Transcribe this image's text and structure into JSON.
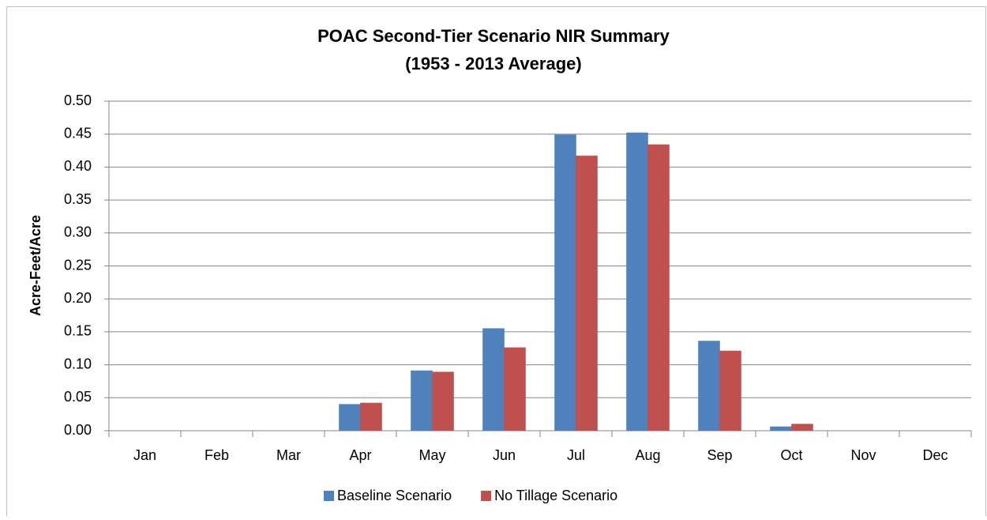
{
  "chart_data": {
    "type": "bar",
    "title": "POAC Second-Tier Scenario NIR Summary",
    "subtitle": "(1953 - 2013 Average)",
    "y_label": "Acre-Feet/Acre",
    "categories": [
      "Jan",
      "Feb",
      "Mar",
      "Apr",
      "May",
      "Jun",
      "Jul",
      "Aug",
      "Sep",
      "Oct",
      "Nov",
      "Dec"
    ],
    "series": [
      {
        "name": "Baseline Scenario",
        "color": "#4f81bd",
        "values": [
          0,
          0,
          0,
          0.04,
          0.091,
          0.155,
          0.449,
          0.452,
          0.136,
          0.006,
          0,
          0
        ]
      },
      {
        "name": "No Tillage Scenario",
        "color": "#c0504d",
        "values": [
          0,
          0,
          0,
          0.042,
          0.089,
          0.126,
          0.417,
          0.434,
          0.121,
          0.01,
          0,
          0
        ]
      }
    ],
    "ylim": [
      0,
      0.5
    ],
    "yticks": [
      {
        "value": 0,
        "label": "0.00"
      },
      {
        "value": 0.05,
        "label": "0.05"
      },
      {
        "value": 0.1,
        "label": "0.10"
      },
      {
        "value": 0.15,
        "label": "0.15"
      },
      {
        "value": 0.2,
        "label": "0.20"
      },
      {
        "value": 0.25,
        "label": "0.25"
      },
      {
        "value": 0.3,
        "label": "0.30"
      },
      {
        "value": 0.35,
        "label": "0.35"
      },
      {
        "value": 0.4,
        "label": "0.40"
      },
      {
        "value": 0.45,
        "label": "0.45"
      },
      {
        "value": 0.5,
        "label": "0.50"
      }
    ],
    "grid": true,
    "legend": "bottom"
  }
}
